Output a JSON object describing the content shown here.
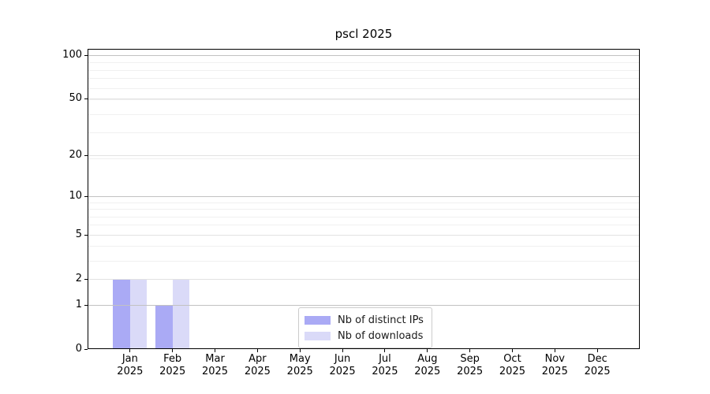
{
  "chart_data": {
    "type": "bar",
    "title": "pscl 2025",
    "categories": [
      "Jan 2025",
      "Feb 2025",
      "Mar 2025",
      "Apr 2025",
      "May 2025",
      "Jun 2025",
      "Jul 2025",
      "Aug 2025",
      "Sep 2025",
      "Oct 2025",
      "Nov 2025",
      "Dec 2025"
    ],
    "series": [
      {
        "name": "Nb of distinct IPs",
        "color": "#aaaaf5",
        "values": [
          2,
          1,
          0,
          0,
          0,
          0,
          0,
          0,
          0,
          0,
          0,
          0
        ]
      },
      {
        "name": "Nb of downloads",
        "color": "#dadaf8",
        "values": [
          2,
          2,
          0,
          0,
          0,
          0,
          0,
          0,
          0,
          0,
          0,
          0
        ]
      }
    ],
    "xlabel": "",
    "ylabel": "",
    "yscale": "log(value+1)",
    "yticks": [
      100,
      50,
      20,
      10,
      5,
      2,
      1,
      0
    ],
    "ylim": [
      0,
      111
    ],
    "grid": "horizontal major+minor, drawn above bars",
    "legend_position": "lower center",
    "colors": {
      "grid_strong": "#c2c2c2",
      "grid_mid": "#e2e2e2",
      "grid_minor": "#f0f0f0",
      "axis": "#000000",
      "background": "#ffffff"
    }
  }
}
